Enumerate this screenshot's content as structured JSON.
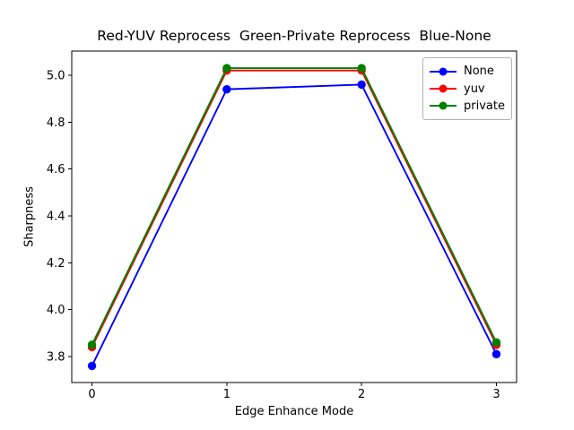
{
  "window": {
    "background": "#ffffff"
  },
  "chart_data": {
    "type": "line",
    "title": "Red-YUV Reprocess  Green-Private Reprocess  Blue-None",
    "xlabel": "Edge Enhance Mode",
    "ylabel": "Sharpness",
    "x": [
      0,
      1,
      2,
      3
    ],
    "xticks": [
      "0",
      "1",
      "2",
      "3"
    ],
    "yticks": [
      "3.8",
      "4.0",
      "4.2",
      "4.4",
      "4.6",
      "4.8",
      "5.0"
    ],
    "xlim": [
      -0.15,
      3.15
    ],
    "ylim": [
      3.689,
      5.103
    ],
    "grid": false,
    "legend": {
      "position": "upper right",
      "entries": [
        "None",
        "yuv",
        "private"
      ]
    },
    "series": [
      {
        "name": "None",
        "color": "#0000ff",
        "marker": "circle",
        "values": [
          3.76,
          4.94,
          4.96,
          3.81
        ]
      },
      {
        "name": "yuv",
        "color": "#ff0000",
        "marker": "circle",
        "values": [
          3.84,
          5.02,
          5.02,
          3.85
        ]
      },
      {
        "name": "private",
        "color": "#008000",
        "marker": "circle",
        "values": [
          3.85,
          5.03,
          5.03,
          3.86
        ]
      }
    ],
    "axis_color": "#000000"
  }
}
